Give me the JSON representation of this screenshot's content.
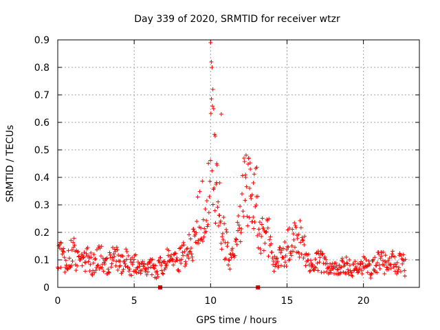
{
  "chart_data": {
    "type": "scatter",
    "title": "Day 339 of 2020, SRMTID for receiver wtzr",
    "xlabel": "GPS time / hours",
    "ylabel": "SRMTID / TECUs",
    "xlim": [
      0,
      23.66
    ],
    "ylim": [
      0,
      0.9
    ],
    "xticks": [
      "0",
      "5",
      "10",
      "15",
      "20"
    ],
    "yticks": [
      "0",
      "0.1",
      "0.2",
      "0.3",
      "0.4",
      "0.5",
      "0.6",
      "0.7",
      "0.8",
      "0.9"
    ],
    "grid": true,
    "marker": "+",
    "color": "#ff0000",
    "series": [
      {
        "name": "SRMTID",
        "x_start": 0.0,
        "x_step": 0.25,
        "x": [
          0.0,
          0.25,
          0.5,
          0.75,
          1.0,
          1.25,
          1.5,
          1.75,
          2.0,
          2.25,
          2.5,
          2.75,
          3.0,
          3.25,
          3.5,
          3.75,
          4.0,
          4.25,
          4.5,
          4.75,
          5.0,
          5.25,
          5.5,
          5.75,
          6.0,
          6.25,
          6.5,
          6.75,
          7.0,
          7.25,
          7.5,
          7.75,
          8.0,
          8.25,
          8.5,
          8.75,
          9.0,
          9.25,
          9.5,
          9.75,
          10.0,
          10.25,
          10.5,
          10.75,
          11.0,
          11.25,
          11.5,
          11.75,
          12.0,
          12.25,
          12.5,
          12.75,
          13.0,
          13.25,
          13.5,
          13.75,
          14.0,
          14.25,
          14.5,
          14.75,
          15.0,
          15.25,
          15.5,
          15.75,
          16.0,
          16.25,
          16.5,
          16.75,
          17.0,
          17.25,
          17.5,
          17.75,
          18.0,
          18.25,
          18.5,
          18.75,
          19.0,
          19.25,
          19.5,
          19.75,
          20.0,
          20.25,
          20.5,
          20.75,
          21.0,
          21.25,
          21.5,
          21.75,
          22.0,
          22.25,
          22.5,
          22.75
        ],
        "y": [
          0.1,
          0.12,
          0.08,
          0.1,
          0.14,
          0.1,
          0.12,
          0.09,
          0.11,
          0.08,
          0.1,
          0.12,
          0.09,
          0.08,
          0.1,
          0.11,
          0.09,
          0.08,
          0.1,
          0.07,
          0.08,
          0.09,
          0.07,
          0.06,
          0.08,
          0.07,
          0.06,
          0.08,
          0.09,
          0.1,
          0.08,
          0.11,
          0.1,
          0.12,
          0.13,
          0.15,
          0.2,
          0.25,
          0.3,
          0.22,
          0.6,
          0.42,
          0.35,
          0.2,
          0.15,
          0.12,
          0.1,
          0.18,
          0.25,
          0.35,
          0.4,
          0.3,
          0.33,
          0.15,
          0.22,
          0.2,
          0.1,
          0.08,
          0.1,
          0.12,
          0.14,
          0.16,
          0.18,
          0.15,
          0.22,
          0.12,
          0.08,
          0.07,
          0.1,
          0.09,
          0.08,
          0.07,
          0.06,
          0.08,
          0.07,
          0.09,
          0.08,
          0.07,
          0.08,
          0.06,
          0.08,
          0.07,
          0.06,
          0.08,
          0.09,
          0.1,
          0.08,
          0.12,
          0.09,
          0.08,
          0.1,
          0.07
        ]
      }
    ],
    "outliers": {
      "x": [
        10.0,
        10.05,
        10.1,
        10.15,
        10.2,
        10.3,
        10.4,
        10.6,
        10.7,
        12.3,
        12.5,
        12.6,
        12.8,
        13.0
      ],
      "y": [
        0.89,
        0.82,
        0.8,
        0.72,
        0.65,
        0.55,
        0.45,
        0.38,
        0.63,
        0.4,
        0.47,
        0.43,
        0.38,
        0.33
      ]
    },
    "x_axis_markers": [
      6.7,
      13.1
    ]
  }
}
